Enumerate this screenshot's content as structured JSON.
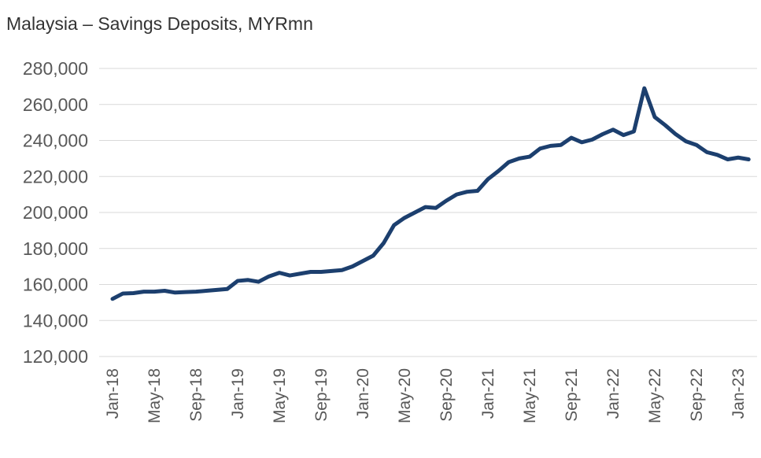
{
  "chart_data": {
    "type": "line",
    "title": "Malaysia – Savings Deposits, MYRmn",
    "categories": [
      "Jan-18",
      null,
      null,
      null,
      "May-18",
      null,
      null,
      null,
      "Sep-18",
      null,
      null,
      null,
      "Jan-19",
      null,
      null,
      null,
      "May-19",
      null,
      null,
      null,
      "Sep-19",
      null,
      null,
      null,
      "Jan-20",
      null,
      null,
      null,
      "May-20",
      null,
      null,
      null,
      "Sep-20",
      null,
      null,
      null,
      "Jan-21",
      null,
      null,
      null,
      "May-21",
      null,
      null,
      null,
      "Sep-21",
      null,
      null,
      null,
      "Jan-22",
      null,
      null,
      null,
      "May-22",
      null,
      null,
      null,
      "Sep-22",
      null,
      null,
      null,
      "Jan-23",
      null
    ],
    "series": [
      {
        "name": "Savings Deposits",
        "color": "#1c3f6e",
        "values": [
          152000,
          155000,
          155200,
          156000,
          156000,
          156500,
          155500,
          155800,
          156000,
          156500,
          157000,
          157500,
          162000,
          162500,
          161500,
          164500,
          166500,
          165000,
          166000,
          167000,
          167000,
          167500,
          168000,
          170000,
          173000,
          176000,
          183000,
          193000,
          197000,
          200000,
          203000,
          202500,
          206500,
          210000,
          211500,
          212000,
          218500,
          223000,
          228000,
          230000,
          231000,
          235500,
          237000,
          237500,
          241500,
          239000,
          240500,
          243500,
          246000,
          243000,
          245000,
          269000,
          253000,
          248500,
          243500,
          239500,
          237500,
          233500,
          232000,
          229500,
          230500,
          229500
        ]
      }
    ],
    "ylim": [
      120000,
      280000
    ],
    "yticks": [
      {
        "value": 120000,
        "label": "120,000"
      },
      {
        "value": 140000,
        "label": "140,000"
      },
      {
        "value": 160000,
        "label": "160,000"
      },
      {
        "value": 180000,
        "label": "180,000"
      },
      {
        "value": 200000,
        "label": "200,000"
      },
      {
        "value": 220000,
        "label": "220,000"
      },
      {
        "value": 240000,
        "label": "240,000"
      },
      {
        "value": 260000,
        "label": "260,000"
      },
      {
        "value": 280000,
        "label": "280,000"
      }
    ],
    "grid": true
  }
}
